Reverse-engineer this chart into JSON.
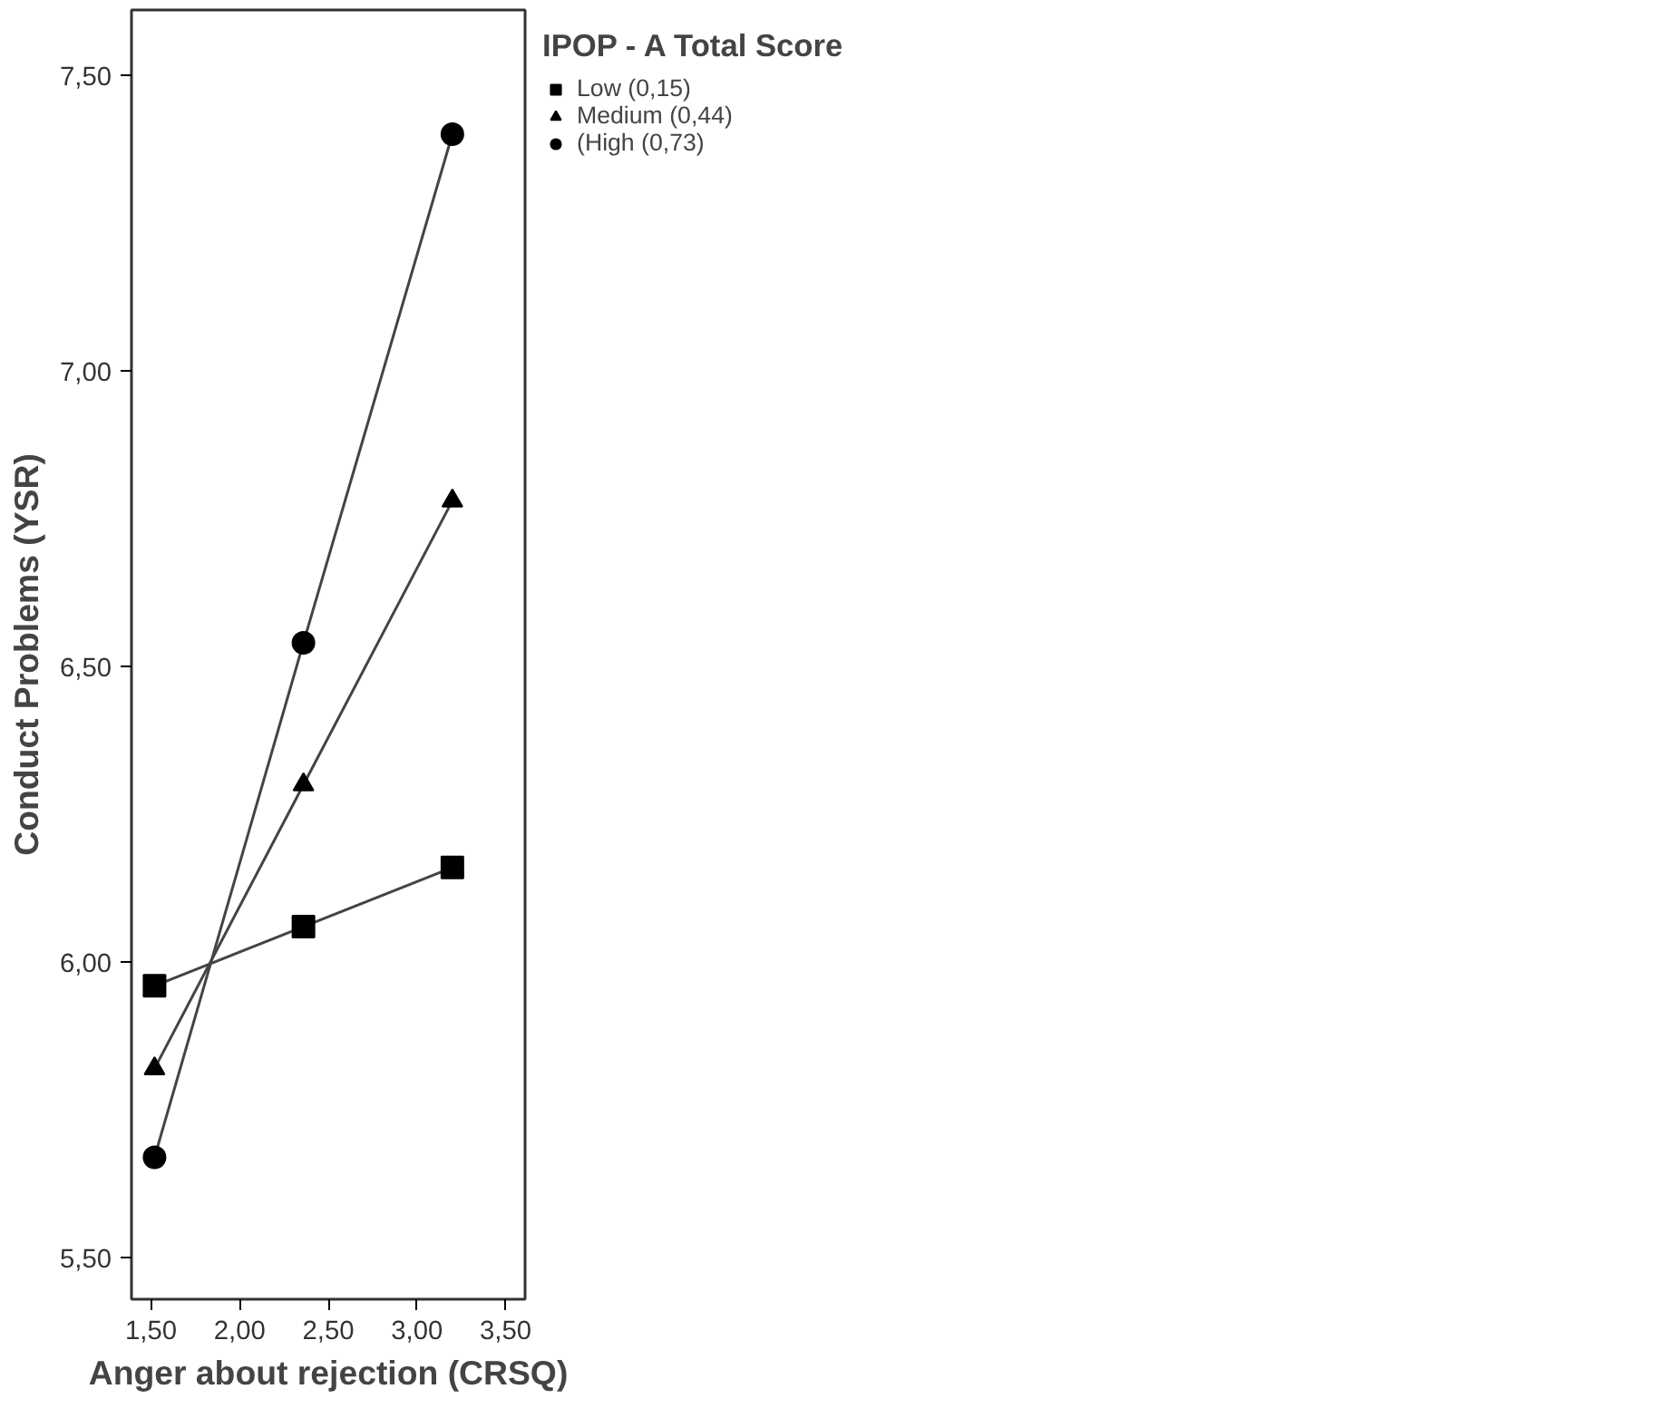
{
  "chart_data": {
    "type": "line",
    "xlabel": "Anger about rejection (CRSQ)",
    "ylabel": "Conduct Problems (YSR)",
    "legend_title": "IPOP - A Total Score",
    "x": [
      1.52,
      2.36,
      3.2
    ],
    "series": [
      {
        "name": "Low (0,15)",
        "color": "#000000",
        "marker": "square",
        "values": [
          5.96,
          6.06,
          6.16
        ]
      },
      {
        "name": "Medium (0,44)",
        "color": "#000000",
        "marker": "triangle",
        "values": [
          5.82,
          6.3,
          6.78
        ]
      },
      {
        "name": "(High (0,73)",
        "color": "#000000",
        "marker": "circle",
        "values": [
          5.67,
          6.54,
          7.4
        ]
      }
    ],
    "xlim": [
      1.39,
      3.61
    ],
    "ylim": [
      5.43,
      7.61
    ],
    "xticks": [
      {
        "value": 1.5,
        "label": "1,50"
      },
      {
        "value": 2.0,
        "label": "2,00"
      },
      {
        "value": 2.5,
        "label": "2,50"
      },
      {
        "value": 3.0,
        "label": "3,00"
      },
      {
        "value": 3.5,
        "label": "3,50"
      }
    ],
    "yticks": [
      {
        "value": 5.5,
        "label": "5,50"
      },
      {
        "value": 6.0,
        "label": "6,00"
      },
      {
        "value": 6.5,
        "label": "6,50"
      },
      {
        "value": 7.0,
        "label": "7,00"
      },
      {
        "value": 7.5,
        "label": "7,50"
      }
    ],
    "grid": false,
    "legend": "right",
    "line_style": "solid"
  }
}
